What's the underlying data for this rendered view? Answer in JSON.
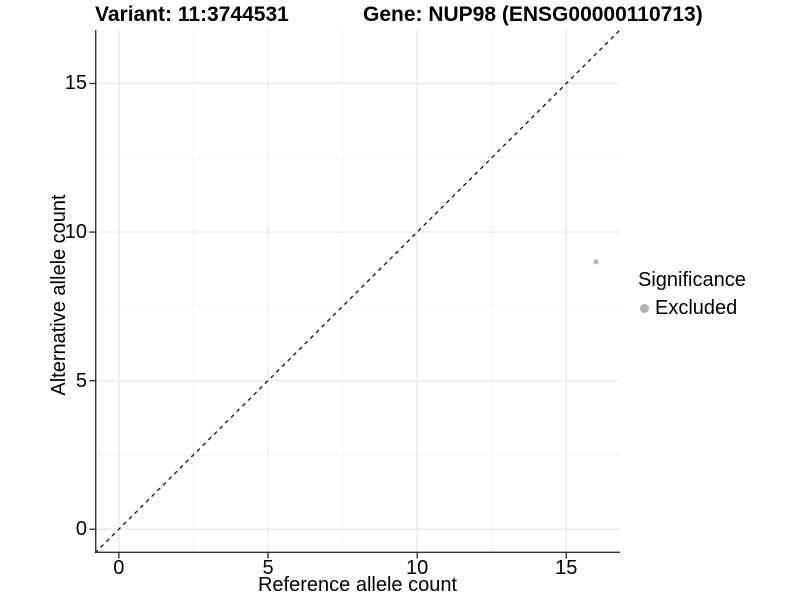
{
  "header": {
    "variant_title": "Variant: 11:3744531",
    "gene_title": "Gene: NUP98 (ENSG00000110713)"
  },
  "axes": {
    "x_label": "Reference allele count",
    "y_label": "Alternative allele count"
  },
  "legend": {
    "title": "Significance",
    "items": [
      {
        "label": "Excluded",
        "color": "#b0b0b0"
      }
    ]
  },
  "colors": {
    "grid_major": "#e6e6e6",
    "grid_minor": "#f2f2f2",
    "axis_line": "#333333",
    "reference_line": "#111111",
    "text": "#000000",
    "background": "#ffffff"
  },
  "chart_data": {
    "type": "scatter",
    "title": "Variant: 11:3744531 | Gene: NUP98 (ENSG00000110713)",
    "xlabel": "Reference allele count",
    "ylabel": "Alternative allele count",
    "xlim": [
      -0.8,
      16.8
    ],
    "ylim": [
      -0.8,
      16.8
    ],
    "x_ticks": [
      0,
      5,
      10,
      15
    ],
    "y_ticks": [
      0,
      5,
      10,
      15
    ],
    "x_minor_ticks": [
      2.5,
      7.5,
      12.5
    ],
    "y_minor_ticks": [
      2.5,
      7.5,
      12.5
    ],
    "grid": true,
    "legend_position": "right",
    "reference_line": {
      "kind": "identity",
      "slope": 1,
      "intercept": 0,
      "style": "dashed"
    },
    "series": [
      {
        "name": "Excluded",
        "color": "#b8b8b8",
        "point_radius": 2.6,
        "points": [
          [
            16,
            9
          ]
        ]
      }
    ]
  }
}
